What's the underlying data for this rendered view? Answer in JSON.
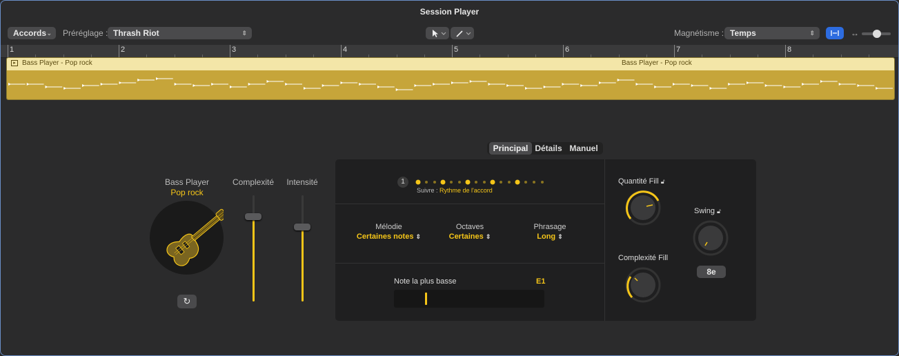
{
  "window": {
    "title": "Session Player"
  },
  "toolbar": {
    "accords_label": "Accords",
    "preset_label": "Préréglage :",
    "preset_value": "Thrash Riot",
    "snap_label": "Magnétisme :",
    "snap_value": "Temps"
  },
  "ruler": {
    "bars": [
      "1",
      "2",
      "3",
      "4",
      "5",
      "6",
      "7",
      "8"
    ]
  },
  "region": {
    "label_1": "Bass Player - Pop rock",
    "label_2": "Bass Player - Pop rock"
  },
  "tabs": {
    "principal": "Principal",
    "details": "Détails",
    "manuel": "Manuel"
  },
  "player": {
    "name": "Bass Player",
    "style": "Pop rock"
  },
  "sliders": {
    "complexity_label": "Complexité",
    "intensity_label": "Intensité",
    "complexity_level": 0.8,
    "intensity_level": 0.7
  },
  "pattern": {
    "number": "1",
    "follow_label": "Suivre :",
    "follow_value": "Rythme de l'accord"
  },
  "options": {
    "melody_label": "Mélodie",
    "melody_value": "Certaines notes",
    "octaves_label": "Octaves",
    "octaves_value": "Certaines",
    "phrasing_label": "Phrasage",
    "phrasing_value": "Long"
  },
  "lowest_note": {
    "label": "Note la plus basse",
    "value": "E1"
  },
  "fills": {
    "quantity_label": "Quantité Fill",
    "complexity_label": "Complexité Fill"
  },
  "swing": {
    "label": "Swing",
    "value": "8e"
  },
  "colors": {
    "accent": "#f5c518",
    "blue": "#2d6ce0"
  }
}
